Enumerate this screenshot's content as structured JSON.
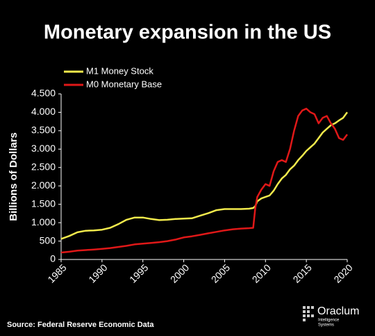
{
  "chart_data": {
    "type": "line",
    "title": "Monetary expansion in the US",
    "y_label": "Billions of Dollars",
    "source": "Source: Federal Reserve Economic Data",
    "logo_text": "Oraclum",
    "logo_tagline": [
      "Intelligence",
      "Systems"
    ],
    "x": [
      1985,
      1986,
      1987,
      1988,
      1989,
      1990,
      1991,
      1992,
      1993,
      1994,
      1995,
      1996,
      1997,
      1998,
      1999,
      2000,
      2001,
      2002,
      2003,
      2004,
      2005,
      2006,
      2007,
      2008,
      2008.5,
      2008.75,
      2009,
      2009.5,
      2010,
      2010.5,
      2011,
      2011.5,
      2012,
      2012.5,
      2013,
      2013.5,
      2014,
      2014.5,
      2015,
      2015.5,
      2016,
      2016.5,
      2017,
      2017.5,
      2018,
      2018.5,
      2019,
      2019.5,
      2020
    ],
    "series": [
      {
        "name": "M1 Money Stock",
        "color": "#f2ea4c",
        "values": [
          560,
          640,
          740,
          780,
          790,
          810,
          860,
          960,
          1080,
          1140,
          1140,
          1100,
          1070,
          1080,
          1100,
          1110,
          1120,
          1190,
          1260,
          1340,
          1370,
          1370,
          1370,
          1380,
          1400,
          1450,
          1580,
          1660,
          1700,
          1740,
          1870,
          2050,
          2200,
          2300,
          2450,
          2550,
          2700,
          2820,
          2950,
          3050,
          3150,
          3300,
          3450,
          3550,
          3650,
          3700,
          3780,
          3850,
          4000
        ]
      },
      {
        "name": "M0 Monetary Base",
        "color": "#e01818",
        "values": [
          190,
          210,
          240,
          255,
          270,
          290,
          310,
          340,
          370,
          410,
          430,
          450,
          470,
          500,
          540,
          600,
          630,
          670,
          710,
          750,
          790,
          820,
          840,
          850,
          860,
          1400,
          1700,
          1900,
          2050,
          2000,
          2400,
          2650,
          2700,
          2650,
          3000,
          3500,
          3900,
          4050,
          4100,
          4000,
          3950,
          3700,
          3850,
          3900,
          3700,
          3550,
          3300,
          3250,
          3400
        ]
      }
    ],
    "xlim": [
      1985,
      2020
    ],
    "xticks": [
      1985,
      1990,
      1995,
      2000,
      2005,
      2010,
      2015,
      2020
    ],
    "ylim": [
      0,
      4500
    ],
    "yticks": [
      0,
      500,
      {
        "value": 1000,
        "label": "1.000"
      },
      {
        "value": 1500,
        "label": "1.500"
      },
      {
        "value": 2000,
        "label": "2.000"
      },
      {
        "value": 2500,
        "label": "2.500"
      },
      {
        "value": 3000,
        "label": "3.000"
      },
      {
        "value": 3500,
        "label": "3.500"
      },
      {
        "value": 4000,
        "label": "4.000"
      },
      {
        "value": 4500,
        "label": "4.500"
      }
    ]
  }
}
